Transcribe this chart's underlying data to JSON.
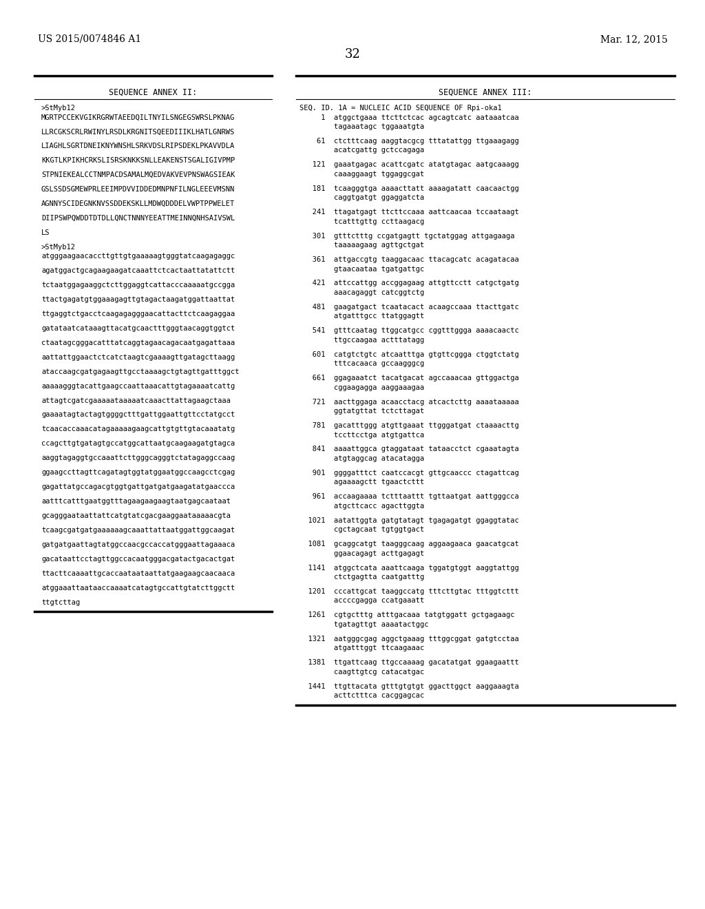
{
  "header_left": "US 2015/0074846 A1",
  "header_right": "Mar. 12, 2015",
  "page_number": "32",
  "left_column_title": "SEQUENCE ANNEX II:",
  "right_column_title": "SEQUENCE ANNEX III:",
  "left_column_lines": [
    ">StMyb12",
    "MGRTPCCEKVGIKRGRWTAEEDQILTNYILSNGEGSWRSLPKNAG",
    "",
    "LLRCGKSCRLRWINYLRSDLKRGNITSQEEDIIIKLHATLGNRWS",
    "",
    "LIAGHLSGRTDNEIKNYWNSHLSRKVDSLRIPSDEKLPKAVVDLA",
    "",
    "KKGTLKPIKHCRKSLISRSKNKKSNLLEAKENSTSGALIGIVPMP",
    "",
    "STPNIEKEALCCTNMPACDSAMALMQEDVAKVEVPNSWAGSIEAK",
    "",
    "GSLSSDSGMEWPRLEEIMPDVVIDDEDMNPNFILNGLEEEVMSNN",
    "",
    "AGNNYSCIDEGNKNVSSDDEKSKLLMDWQDDDELVWPTPPWELET",
    "",
    "DIIPSWPQWDDTDTDLLQNCTNNNYEEATTMEINNQNHSAIVSWL",
    "",
    "LS",
    "",
    ">StMyb12",
    "atgggaagaacaccttgttgtgaaaaagtgggtatcaagagaggc",
    "",
    "agatggactgcagaagaagatcaaattctcactaattatattctt",
    "",
    "tctaatggagaaggctcttggaggtcattacccaaaaatgccgga",
    "",
    "ttactgagatgtggaaagagttgtagactaagatggattaattat",
    "",
    "ttgaggtctgacctcaagagagggaacattacttctcaagaggaa",
    "",
    "gatataatcataaagttacatgcaactttgggtaacaggtggtct",
    "",
    "ctaatagcgggacatttatcaggtagaacagacaatgagattaaa",
    "",
    "aattattggaactctcatctaagtcgaaaagttgatagcttaagg",
    "",
    "ataccaagcgatgagaagttgcctaaaagctgtagttgatttggct",
    "",
    "aaaaagggtacattgaagccaattaaacattgtagaaaatcattg",
    "",
    "attagtcgatcgaaaaataaaaatcaaacttattagaagctaaa",
    "",
    "gaaaatagtactagtggggctttgattggaattgttcctatgcct",
    "",
    "tcaacaccaaacatagaaaaagaagcattgtgttgtacaaatatg",
    "",
    "ccagcttgtgatagtgccatggcattaatgcaagaagatgtagca",
    "",
    "aaggtagaggtgccaaattcttgggcagggtctatagaggccaag",
    "",
    "ggaagccttagttcagatagtggtatggaatggccaagcctcgag",
    "",
    "gagattatgccagacgtggtgattgatgatgaagatatgaaccca",
    "",
    "aatttcatttgaatggtttagaagaagaagtaatgagcaataat",
    "",
    "gcagggaataattattcatgtatcgacgaaggaataaaaacgta",
    "",
    "tcaagcgatgatgaaaaaagcaaattattaatggattggcaagat",
    "",
    "gatgatgaattagtatggccaacgccaccatgggaattagaaaca",
    "",
    "gacataattcctagttggccacaatgggacgatactgacactgat",
    "",
    "ttacttcaaaattgcaccaataataattatgaagaagcaacaaca",
    "",
    "atggaaattaataaccaaaatcatagtgccattgtatcttggctt",
    "",
    "ttgtcttag"
  ],
  "right_column_lines": [
    "SEQ. ID. 1A = NUCLEIC ACID SEQUENCE OF Rpi-oka1",
    "     1  atggctgaaa ttcttctcac agcagtcatc aataaatcaa",
    "        tagaaatagc tggaaatgta",
    "",
    "    61  ctctttcaag aaggtacgcg tttatattgg ttgaaagagg",
    "        acatcgattg gctccagaga",
    "",
    "   121  gaaatgagac acattcgatc atatgtagac aatgcaaagg",
    "        caaaggaagt tggaggcgat",
    "",
    "   181  tcaagggtga aaaacttatt aaaagatatt caacaactgg",
    "        caggtgatgt ggaggatcta",
    "",
    "   241  ttagatgagt ttcttccaaa aattcaacaa tccaataagt",
    "        tcatttgttg ccttaagacg",
    "",
    "   301  gtttctttg ccgatgagtt tgctatggag attgagaaga",
    "        taaaaagaag agttgctgat",
    "",
    "   361  attgaccgtg taaggacaac ttacagcatc acagatacaa",
    "        gtaacaataa tgatgattgc",
    "",
    "   421  attccattgg accggagaag attgttcctt catgctgatg",
    "        aaacagaggt catcggtctg",
    "",
    "   481  gaagatgact tcaatacact acaagccaaa ttacttgatc",
    "        atgatttgcc ttatggagtt",
    "",
    "   541  gtttcaatag ttggcatgcc cggtttggga aaaacaactc",
    "        ttgccaagaa actttatagg",
    "",
    "   601  catgtctgtc atcaatttga gtgttcggga ctggtctatg",
    "        tttcacaaca gccaagggcg",
    "",
    "   661  ggagaaatct tacatgacat agccaaacaa gttggactga",
    "        cggaagagga aaggaaagaa",
    "",
    "   721  aacttggaga acaacctacg atcactcttg aaaataaaaa",
    "        ggtatgttat tctcttagat",
    "",
    "   781  gacatttggg atgttgaaat ttgggatgat ctaaaacttg",
    "        tccttcctga atgtgattca",
    "",
    "   841  aaaattggca gtaggataat tataacctct cgaaatagta",
    "        atgtaggcag atacatagga",
    "",
    "   901  ggggatttct caatccacgt gttgcaaccc ctagattcag",
    "        agaaaagctt tgaactcttt",
    "",
    "   961  accaagaaaa tctttaattt tgttaatgat aattgggcca",
    "        atgcttcacc agacttggta",
    "",
    "  1021  aatattggta gatgtatagt tgagagatgt ggaggtatac",
    "        cgctagcaat tgtggtgact",
    "",
    "  1081  gcaggcatgt taagggcaag aggaagaaca gaacatgcat",
    "        ggaacagagt acttgagagt",
    "",
    "  1141  atggctcata aaattcaaga tggatgtggt aaggtattgg",
    "        ctctgagtta caatgatttg",
    "",
    "  1201  cccattgcat taaggccatg tttcttgtac tttggtcttt",
    "        accccgagga ccatgaaatt",
    "",
    "  1261  cgtgctttg atttgacaaa tatgtggatt gctgagaagc",
    "        tgatagttgt aaaatactggc",
    "",
    "  1321  aatgggcgag aggctgaaag tttggcggat gatgtcctaa",
    "        atgatttggt ttcaagaaac",
    "",
    "  1381  ttgattcaag ttgccaaaag gacatatgat ggaagaattt",
    "        caagttgtcg catacatgac",
    "",
    "  1441  ttgttacata gtttgtgtgt ggacttggct aaggaaagta",
    "        acttctttca cacggagcac"
  ],
  "bg_color": "#ffffff",
  "text_color": "#000000",
  "font_size": 7.5,
  "header_font_size": 10,
  "page_num_font_size": 13
}
